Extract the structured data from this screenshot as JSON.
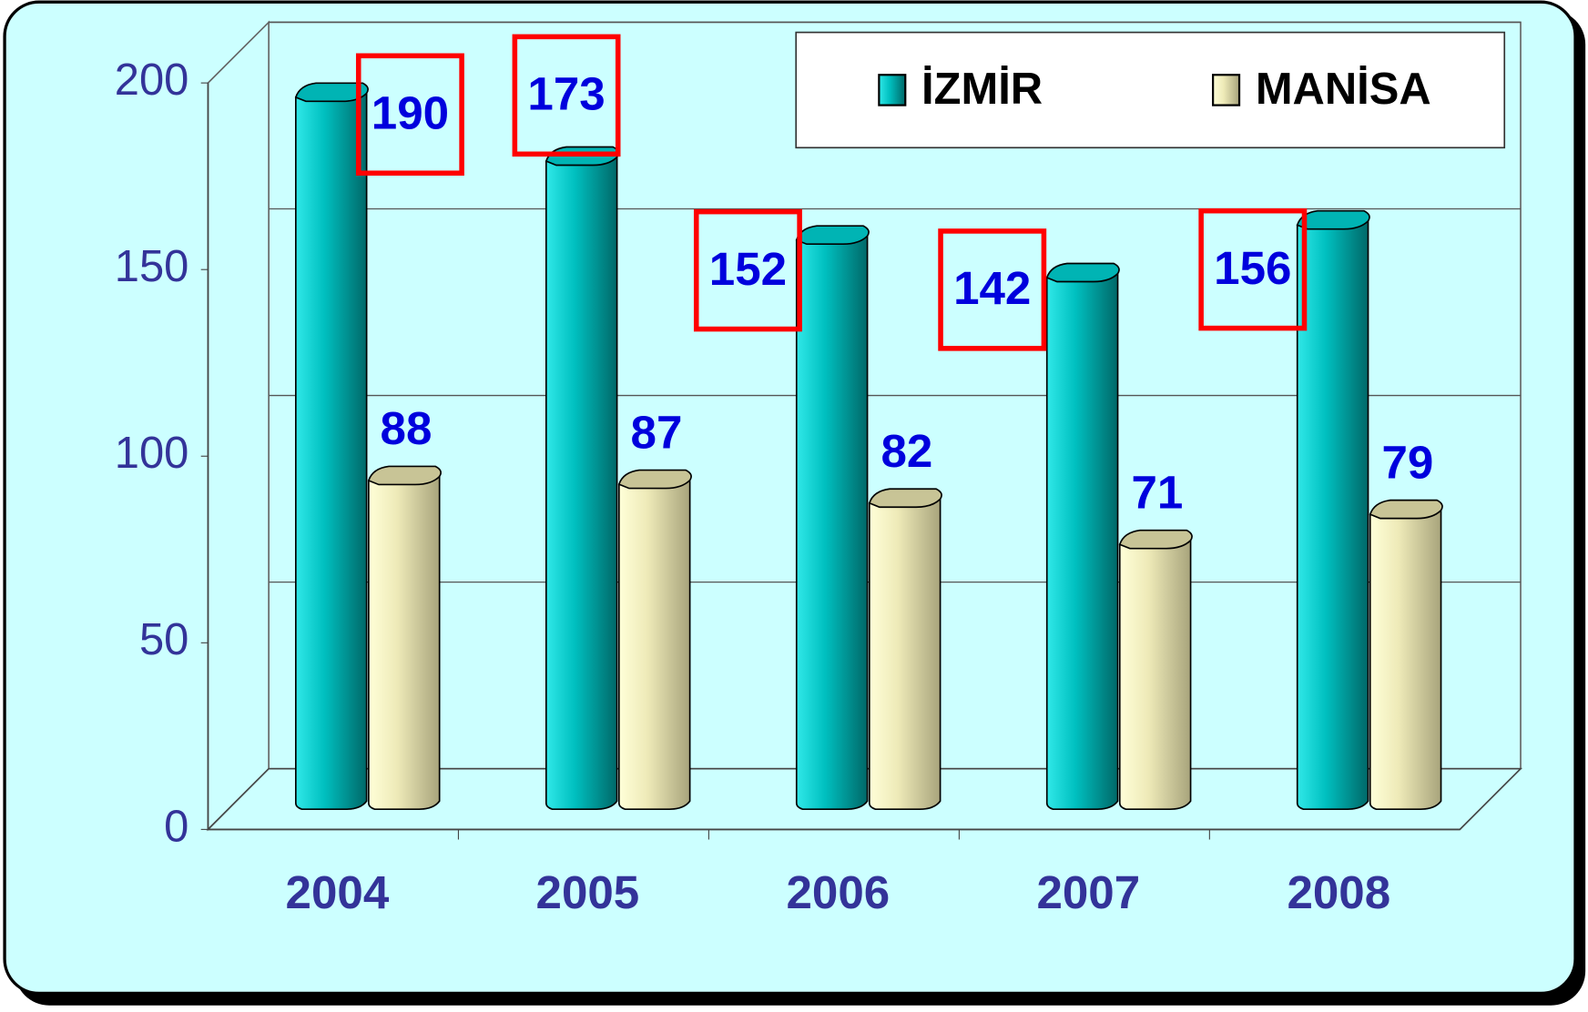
{
  "chart_data": {
    "type": "bar3d",
    "categories": [
      "2004",
      "2005",
      "2006",
      "2007",
      "2008"
    ],
    "series": [
      {
        "name": "İZMİR",
        "color": "#00c8c8",
        "values": [
          190,
          173,
          152,
          142,
          156
        ]
      },
      {
        "name": "MANİSA",
        "color": "#f4f4c0",
        "values": [
          88,
          87,
          82,
          71,
          79
        ]
      }
    ],
    "ylim": [
      0,
      200
    ],
    "yticks": [
      0,
      50,
      100,
      150,
      200
    ],
    "grid": true,
    "legend": "top-right"
  }
}
